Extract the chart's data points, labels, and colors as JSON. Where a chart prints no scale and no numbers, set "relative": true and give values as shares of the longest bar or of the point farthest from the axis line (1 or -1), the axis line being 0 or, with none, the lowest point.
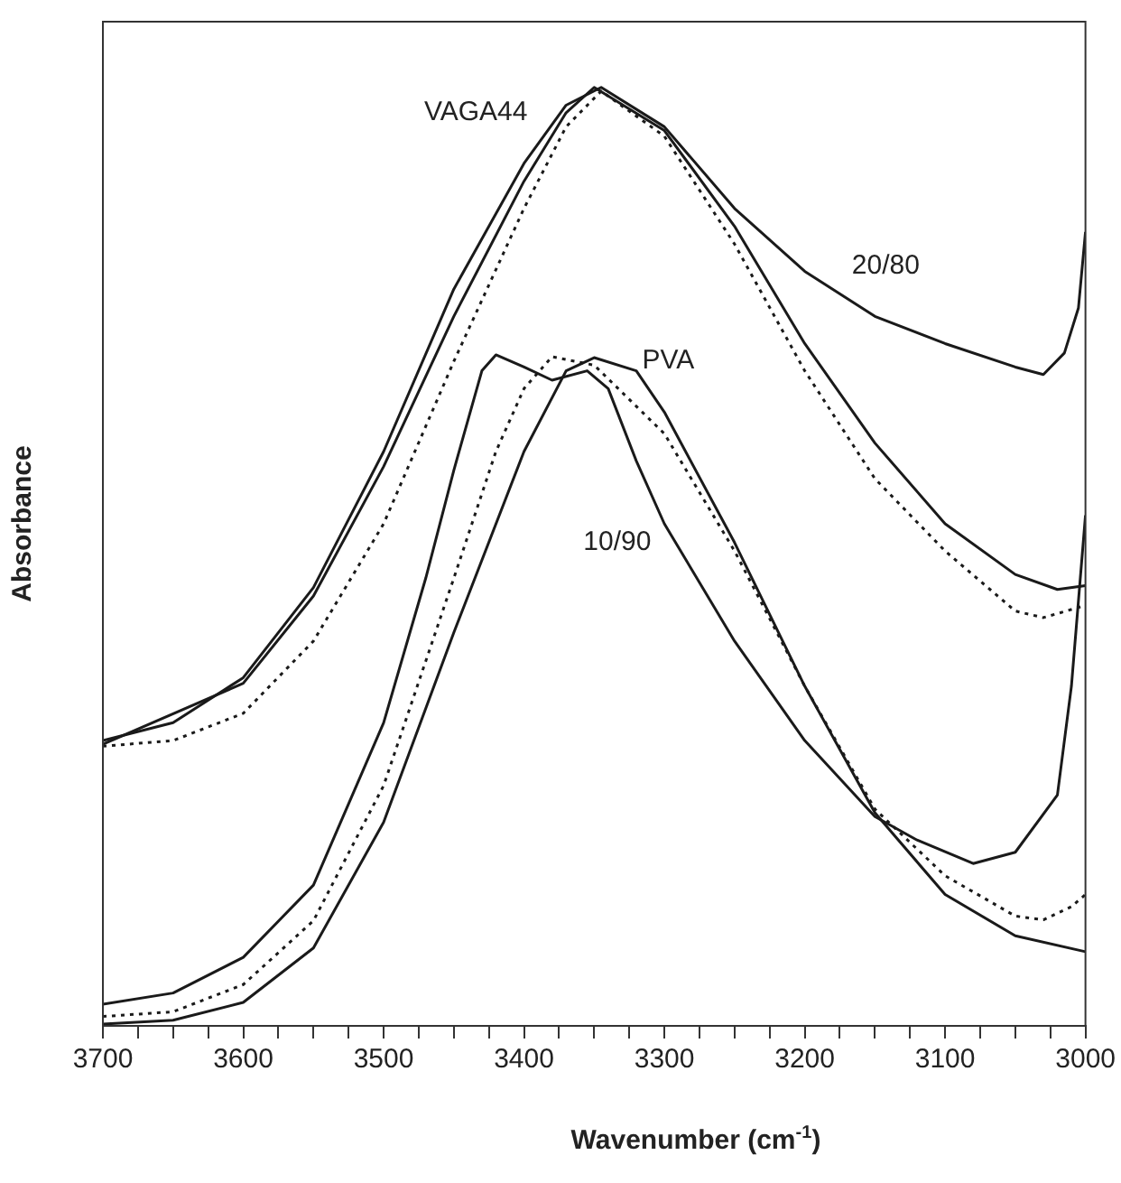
{
  "chart_data": {
    "type": "line",
    "relative": true,
    "xlabel": "Wavenumber (cm$^{-1}$)",
    "ylabel": "Absorbance",
    "xlim": [
      3700,
      3000
    ],
    "xticks": [
      3700,
      {
        "value": 3675,
        "label": null
      },
      {
        "value": 3650,
        "label": null
      },
      {
        "value": 3625,
        "label": null
      },
      3600,
      {
        "value": 3575,
        "label": null
      },
      {
        "value": 3550,
        "label": null
      },
      {
        "value": 3525,
        "label": null
      },
      3500,
      {
        "value": 3475,
        "label": null
      },
      {
        "value": 3450,
        "label": null
      },
      {
        "value": 3425,
        "label": null
      },
      3400,
      {
        "value": 3375,
        "label": null
      },
      {
        "value": 3350,
        "label": null
      },
      {
        "value": 3325,
        "label": null
      },
      3300,
      {
        "value": 3275,
        "label": null
      },
      {
        "value": 3250,
        "label": null
      },
      {
        "value": 3225,
        "label": null
      },
      3200,
      {
        "value": 3175,
        "label": null
      },
      {
        "value": 3150,
        "label": null
      },
      {
        "value": 3125,
        "label": null
      },
      3100,
      {
        "value": 3075,
        "label": null
      },
      {
        "value": 3050,
        "label": null
      },
      {
        "value": 3025,
        "label": null
      },
      3000
    ],
    "grid": false,
    "legend": false,
    "marker": "none",
    "series": [
      {
        "name": "VAGA44",
        "color": "#1a1a1a",
        "line_style": "solid",
        "x": [
          3700,
          3600,
          3550,
          3500,
          3450,
          3400,
          3370,
          3350,
          3300,
          3250,
          3200,
          3150,
          3100,
          3050,
          3020,
          3000
        ],
        "values": [
          0.3,
          0.365,
          0.458,
          0.596,
          0.756,
          0.9,
          0.973,
          1.0,
          0.954,
          0.852,
          0.727,
          0.621,
          0.535,
          0.481,
          0.465,
          0.469
        ]
      },
      {
        "name": "20/80",
        "color": "#1a1a1a",
        "line_style": "solid",
        "x": [
          3700,
          3650,
          3600,
          3550,
          3500,
          3450,
          3400,
          3370,
          3345,
          3300,
          3250,
          3200,
          3150,
          3100,
          3050,
          3030,
          3015,
          3005,
          3000
        ],
        "values": [
          0.304,
          0.323,
          0.371,
          0.467,
          0.612,
          0.785,
          0.919,
          0.981,
          1.0,
          0.958,
          0.871,
          0.804,
          0.756,
          0.727,
          0.702,
          0.694,
          0.717,
          0.765,
          0.846
        ]
      },
      {
        "color": "#1a1a1a",
        "line_style": "dotted",
        "x": [
          3700,
          3650,
          3600,
          3550,
          3500,
          3450,
          3400,
          3370,
          3345,
          3300,
          3250,
          3200,
          3150,
          3100,
          3050,
          3030,
          3000
        ],
        "values": [
          0.298,
          0.304,
          0.333,
          0.41,
          0.535,
          0.708,
          0.871,
          0.958,
          0.996,
          0.948,
          0.833,
          0.698,
          0.583,
          0.506,
          0.442,
          0.435,
          0.448
        ]
      },
      {
        "name": "PVA",
        "color": "#1a1a1a",
        "line_style": "solid",
        "x": [
          3700,
          3650,
          3600,
          3550,
          3500,
          3450,
          3400,
          3370,
          3350,
          3320,
          3300,
          3250,
          3200,
          3150,
          3100,
          3050,
          3000
        ],
        "values": [
          0.002,
          0.006,
          0.025,
          0.083,
          0.217,
          0.419,
          0.612,
          0.698,
          0.712,
          0.698,
          0.654,
          0.515,
          0.362,
          0.227,
          0.14,
          0.096,
          0.079
        ]
      },
      {
        "name": "10/90",
        "color": "#1a1a1a",
        "line_style": "solid",
        "x": [
          3700,
          3650,
          3600,
          3550,
          3500,
          3470,
          3450,
          3430,
          3420,
          3400,
          3380,
          3355,
          3340,
          3320,
          3300,
          3250,
          3200,
          3150,
          3120,
          3080,
          3050,
          3020,
          3010,
          3000
        ],
        "values": [
          0.023,
          0.035,
          0.073,
          0.15,
          0.323,
          0.477,
          0.592,
          0.698,
          0.715,
          0.702,
          0.688,
          0.698,
          0.679,
          0.602,
          0.535,
          0.41,
          0.304,
          0.223,
          0.198,
          0.173,
          0.185,
          0.246,
          0.362,
          0.544
        ]
      },
      {
        "color": "#1a1a1a",
        "line_style": "dotted",
        "x": [
          3700,
          3650,
          3600,
          3550,
          3500,
          3450,
          3420,
          3400,
          3380,
          3350,
          3300,
          3250,
          3200,
          3150,
          3100,
          3050,
          3030,
          3010,
          3000
        ],
        "values": [
          0.01,
          0.015,
          0.044,
          0.112,
          0.256,
          0.477,
          0.612,
          0.679,
          0.713,
          0.704,
          0.631,
          0.506,
          0.362,
          0.231,
          0.16,
          0.117,
          0.113,
          0.127,
          0.14
        ]
      }
    ]
  }
}
